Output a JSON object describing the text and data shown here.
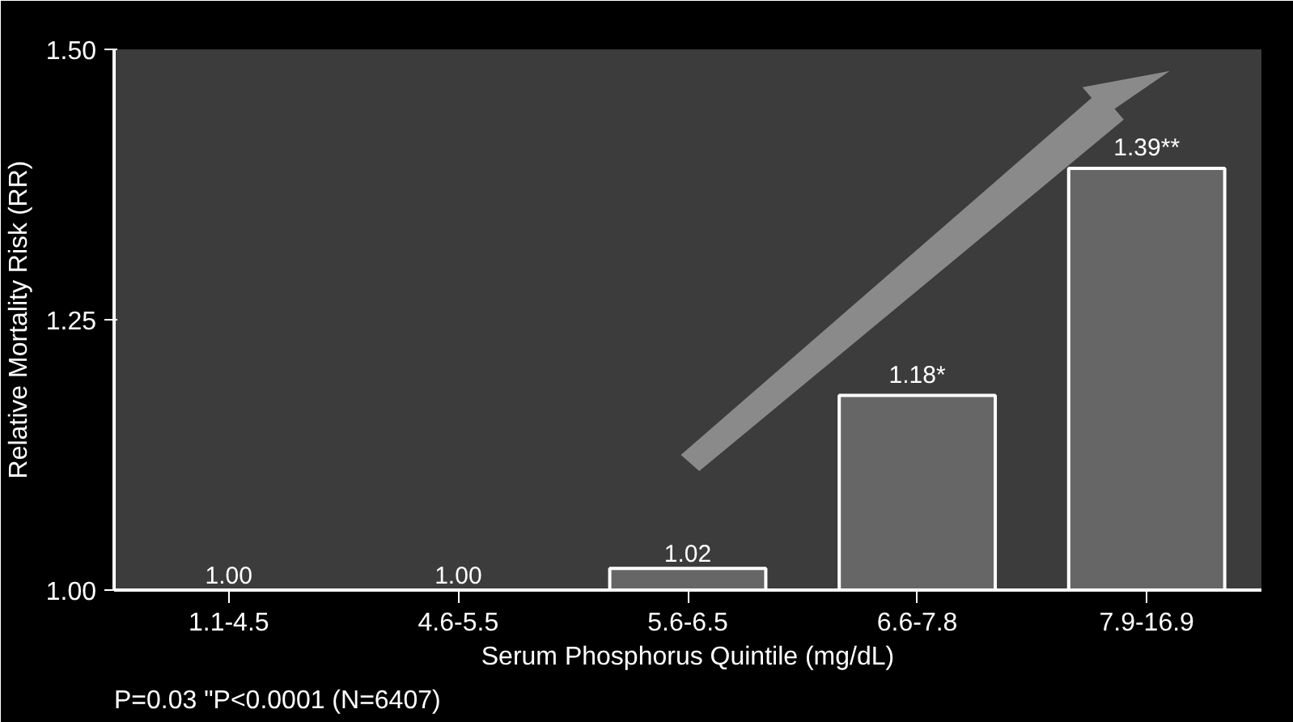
{
  "chart_data": {
    "type": "bar",
    "xlabel": "Serum Phosphorus Quintile (mg/dL)",
    "ylabel": "Relative Mortality Risk (RR)",
    "categories": [
      "1.1-4.5",
      "4.6-5.5",
      "5.6-6.5",
      "6.6-7.8",
      "7.9-16.9"
    ],
    "values": [
      1.0,
      1.0,
      1.02,
      1.18,
      1.39
    ],
    "value_labels": [
      "1.00",
      "1.00",
      "1.02",
      "1.18*",
      "1.39**"
    ],
    "color": "#666666",
    "ylim": [
      1.0,
      1.5
    ],
    "yticks": [
      {
        "value": 1.0,
        "label": "1.00"
      },
      {
        "value": 1.25,
        "label": "1.25"
      },
      {
        "value": 1.5,
        "label": "1.50"
      }
    ],
    "grid": false,
    "annotations": [
      "P=0.03 \"P<0.0001 (N=6407)"
    ]
  }
}
